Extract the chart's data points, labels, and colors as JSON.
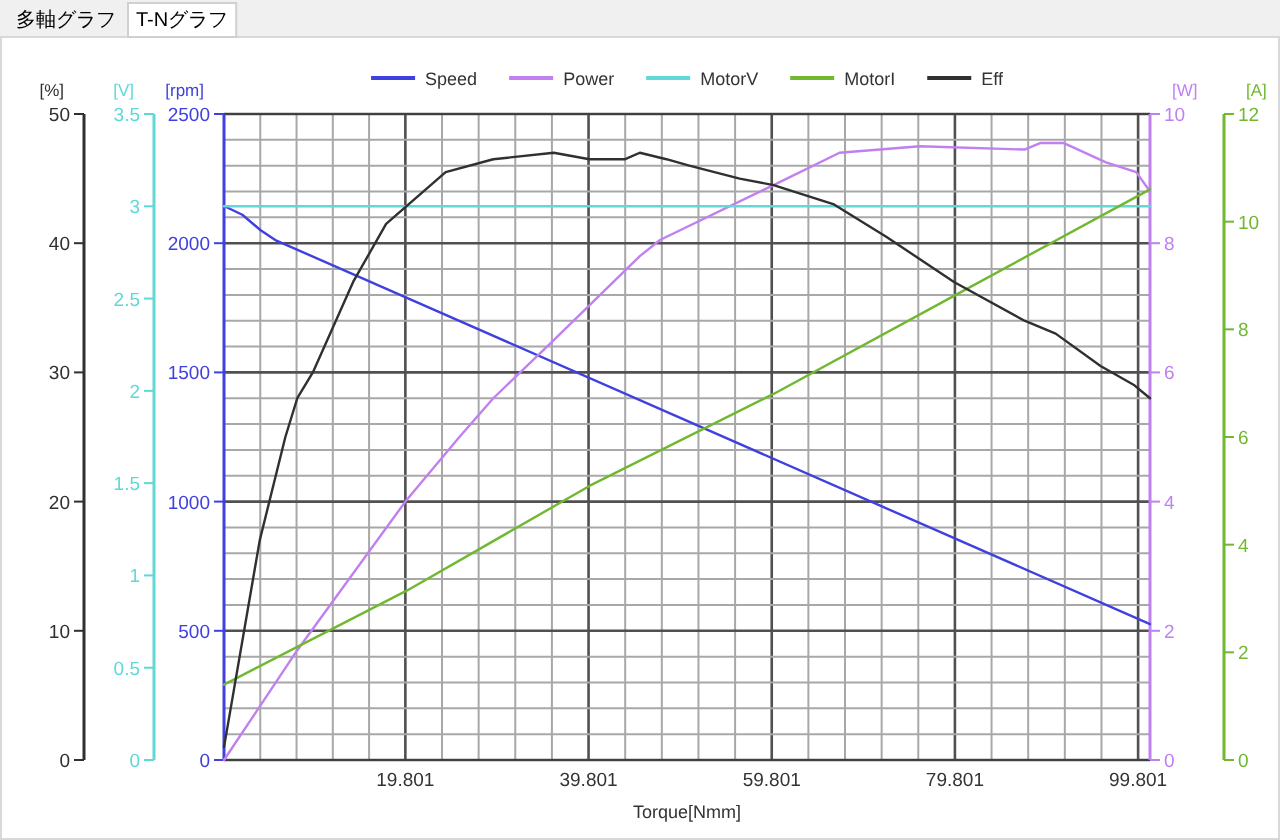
{
  "chart_data": [
    {
      "type": "line",
      "xlabel": "Torque[Nmm]",
      "ylabel": "[rpm]",
      "y2label": "[W]",
      "y3label": "[V]",
      "annotations": [
        "多軸グラフ",
        "T-Nグラフ"
      ],
      "legend": "top",
      "grid": true,
      "xlim": [
        0,
        101.1
      ],
      "xticks": [
        {
          "value": 3.96,
          "label": null
        },
        {
          "value": 7.92,
          "label": null
        },
        {
          "value": 11.88,
          "label": null
        },
        {
          "value": 15.84,
          "label": null
        },
        19.801,
        {
          "value": 23.801,
          "label": null
        },
        {
          "value": 27.801,
          "label": null
        },
        {
          "value": 31.801,
          "label": null
        },
        {
          "value": 35.801,
          "label": null
        },
        39.801,
        {
          "value": 43.801,
          "label": null
        },
        {
          "value": 47.801,
          "label": null
        },
        {
          "value": 51.801,
          "label": null
        },
        {
          "value": 55.801,
          "label": null
        },
        59.801,
        {
          "value": 63.801,
          "label": null
        },
        {
          "value": 67.801,
          "label": null
        },
        {
          "value": 71.801,
          "label": null
        },
        {
          "value": 75.801,
          "label": null
        },
        79.801,
        {
          "value": 83.801,
          "label": null
        },
        {
          "value": 87.801,
          "label": null
        },
        {
          "value": 91.801,
          "label": null
        },
        {
          "value": 95.801,
          "label": null
        },
        99.801
      ],
      "ylim": [
        0,
        2500
      ],
      "yticks": [
        0,
        {
          "value": 100,
          "label": null
        },
        {
          "value": 200,
          "label": null
        },
        {
          "value": 300,
          "label": null
        },
        {
          "value": 400,
          "label": null
        },
        500,
        {
          "value": 600,
          "label": null
        },
        {
          "value": 700,
          "label": null
        },
        {
          "value": 800,
          "label": null
        },
        {
          "value": 900,
          "label": null
        },
        1000,
        {
          "value": 1100,
          "label": null
        },
        {
          "value": 1200,
          "label": null
        },
        {
          "value": 1300,
          "label": null
        },
        {
          "value": 1400,
          "label": null
        },
        1500,
        {
          "value": 1600,
          "label": null
        },
        {
          "value": 1700,
          "label": null
        },
        {
          "value": 1800,
          "label": null
        },
        {
          "value": 1900,
          "label": null
        },
        2000,
        {
          "value": 2100,
          "label": null
        },
        {
          "value": 2200,
          "label": null
        },
        {
          "value": 2300,
          "label": null
        },
        {
          "value": 2400,
          "label": null
        },
        2500
      ],
      "y2lim": [
        0,
        10
      ],
      "y2ticks": [
        0,
        2,
        4,
        6,
        8,
        10
      ],
      "y3lim": [
        0,
        3.5
      ],
      "y3ticks": [
        0,
        0.5,
        1,
        1.5,
        2,
        2.5,
        3,
        3.5
      ],
      "series": [
        {
          "name": "Speed",
          "color": "#4040e0",
          "x": [
            0,
            2,
            4,
            5.6,
            101.1
          ],
          "values": [
            2144,
            2110,
            2050,
            2012,
            526
          ]
        },
        {
          "name": "Power",
          "color": "#c080f0",
          "axis": "y2",
          "x": [
            0,
            8,
            19.8,
            25.7,
            29.4,
            36,
            45.4,
            47.6,
            60,
            67.2,
            76,
            87.4,
            89.1,
            91.7,
            96.3,
            99.6,
            101.1
          ],
          "values": [
            0,
            1.7,
            4.0,
            5.0,
            5.6,
            6.5,
            7.8,
            8.05,
            8.9,
            9.4,
            9.5,
            9.45,
            9.55,
            9.55,
            9.25,
            9.1,
            8.8
          ]
        },
        {
          "name": "MotorV",
          "color": "#60d8d8",
          "axis": "y3",
          "x": [
            0,
            101.1
          ],
          "values": [
            3.0,
            3.0
          ]
        }
      ]
    },
    {
      "type": "line",
      "ylabel": "[%]",
      "y2label": "[A]",
      "legend": "top",
      "tick_labels": "y",
      "xlim": [
        0,
        101.1
      ],
      "ylim": [
        0,
        50
      ],
      "yticks": [
        0,
        10,
        20,
        30,
        40,
        50
      ],
      "y2lim": [
        0,
        12
      ],
      "y2ticks": [
        0,
        2,
        4,
        6,
        8,
        10,
        12
      ],
      "series": [
        {
          "name": "MotorI",
          "color": "#70b830",
          "axis": "y2",
          "x": [
            0,
            20,
            40,
            60,
            80,
            101.1
          ],
          "values": [
            1.4,
            3.15,
            5.1,
            6.8,
            8.65,
            10.6
          ]
        },
        {
          "name": "Eff",
          "color": "#303030",
          "x": [
            0,
            3.9,
            6.7,
            8,
            9.7,
            14.1,
            17.7,
            24.2,
            29.4,
            36,
            39.9,
            43.8,
            45.4,
            48.3,
            50.8,
            56.3,
            60,
            66.6,
            72.3,
            79.7,
            87.4,
            90.8,
            95.7,
            99.4,
            101.1
          ],
          "values": [
            1,
            17,
            25,
            28,
            30,
            37,
            41.5,
            45.5,
            46.5,
            47,
            46.5,
            46.5,
            47,
            46.5,
            46,
            45,
            44.5,
            43,
            40.5,
            37,
            34,
            33,
            30.5,
            29,
            28
          ]
        }
      ]
    }
  ]
}
